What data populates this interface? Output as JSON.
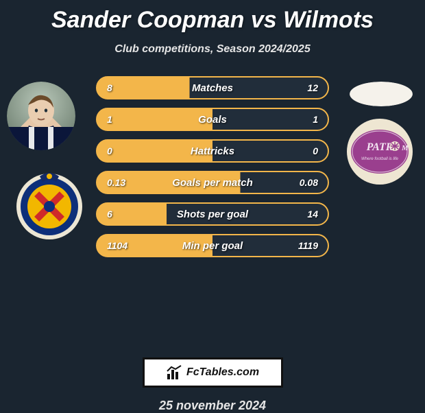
{
  "title": "Sander Coopman vs Wilmots",
  "subtitle": "Club competitions, Season 2024/2025",
  "date": "25 november 2024",
  "badge_text": "FcTables.com",
  "row_style": {
    "height": 34,
    "border_radius": 18,
    "gap": 12,
    "font_size": 14,
    "label_font_size": 15,
    "accent_color": "#f3b64a",
    "base_color": "#212d3a",
    "text_color": "#ffffff"
  },
  "rows": [
    {
      "label": "Matches",
      "left": "8",
      "right": "12",
      "left_pct": 40
    },
    {
      "label": "Goals",
      "left": "1",
      "right": "1",
      "left_pct": 50
    },
    {
      "label": "Hattricks",
      "left": "0",
      "right": "0",
      "left_pct": 50
    },
    {
      "label": "Goals per match",
      "left": "0.13",
      "right": "0.08",
      "left_pct": 62
    },
    {
      "label": "Shots per goal",
      "left": "6",
      "right": "14",
      "left_pct": 30
    },
    {
      "label": "Min per goal",
      "left": "1104",
      "right": "1119",
      "left_pct": 50
    }
  ],
  "colors": {
    "background": "#1a2530",
    "title": "#ffffff",
    "subtitle": "#e6e6e6",
    "badge_bg": "#ffffff",
    "badge_border": "#111111",
    "badge_text": "#111111"
  }
}
